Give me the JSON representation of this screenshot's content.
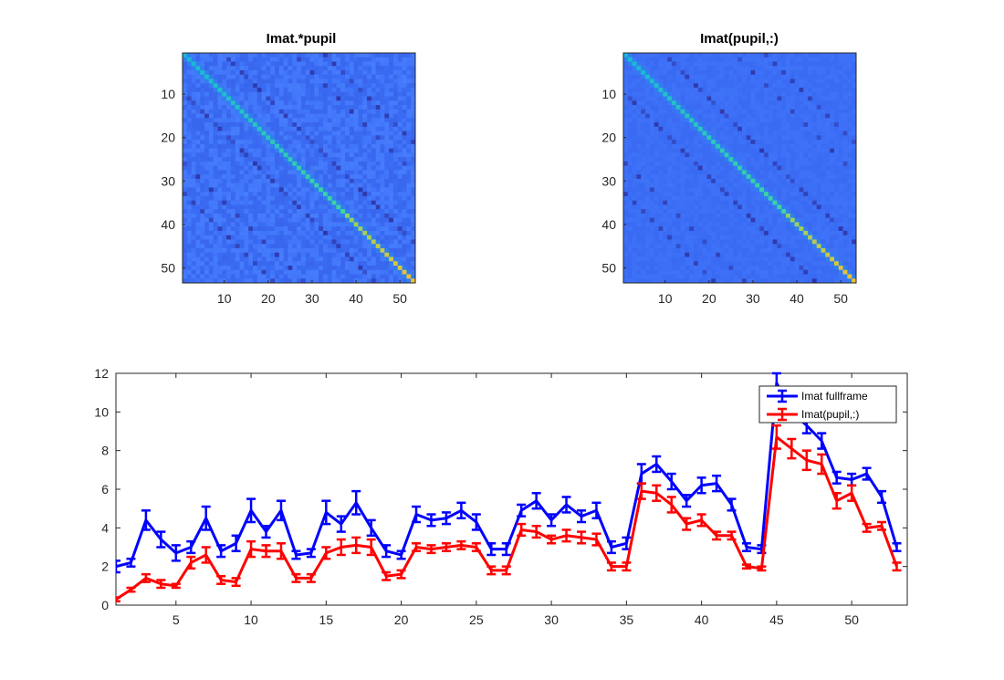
{
  "chart_data": [
    {
      "type": "heatmap",
      "title": "Imat.*pupil",
      "size": 53,
      "xticks": [
        10,
        20,
        30,
        40,
        50
      ],
      "yticks": [
        10,
        20,
        30,
        40,
        50
      ],
      "description_pattern": "bright diagonal on blue background with faint off-diagonal bands",
      "colors": {
        "background": "#3a6cf5",
        "low": "#2f37a8",
        "mid": "#17b8d8",
        "high": "#f5c032"
      }
    },
    {
      "type": "heatmap",
      "title": "Imat(pupil,:)",
      "size": 53,
      "xticks": [
        10,
        20,
        30,
        40,
        50
      ],
      "yticks": [
        10,
        20,
        30,
        40,
        50
      ],
      "colors": {
        "background": "#3a6cf5",
        "low": "#2f37a8",
        "mid": "#17b8d8",
        "high": "#f5c032"
      }
    },
    {
      "type": "line",
      "xlim": [
        1,
        53.7
      ],
      "ylim": [
        0,
        12
      ],
      "xticks": [
        5,
        10,
        15,
        20,
        25,
        30,
        35,
        40,
        45,
        50
      ],
      "yticks": [
        0,
        2,
        4,
        6,
        8,
        10,
        12
      ],
      "legend_position": "top-right",
      "x": [
        1,
        2,
        3,
        4,
        5,
        6,
        7,
        8,
        9,
        10,
        11,
        12,
        13,
        14,
        15,
        16,
        17,
        18,
        19,
        20,
        21,
        22,
        23,
        24,
        25,
        26,
        27,
        28,
        29,
        30,
        31,
        32,
        33,
        34,
        35,
        36,
        37,
        38,
        39,
        40,
        41,
        42,
        43,
        44,
        45,
        46,
        47,
        48,
        49,
        50,
        51,
        52,
        53
      ],
      "series": [
        {
          "name": "Imat fullframe",
          "color": "#0000ff",
          "values": [
            2.0,
            2.2,
            4.4,
            3.4,
            2.7,
            3.0,
            4.5,
            2.8,
            3.2,
            4.9,
            3.8,
            4.9,
            2.6,
            2.7,
            4.8,
            4.2,
            5.3,
            4.0,
            2.8,
            2.6,
            4.7,
            4.4,
            4.5,
            4.9,
            4.3,
            2.9,
            2.9,
            4.9,
            5.4,
            4.4,
            5.2,
            4.6,
            4.9,
            3.0,
            3.2,
            6.8,
            7.3,
            6.4,
            5.4,
            6.2,
            6.3,
            5.2,
            3.0,
            2.9,
            11.5,
            10.0,
            9.3,
            8.5,
            6.6,
            6.5,
            6.8,
            5.6,
            3.0
          ],
          "errors": [
            0.3,
            0.2,
            0.5,
            0.4,
            0.4,
            0.3,
            0.6,
            0.3,
            0.4,
            0.6,
            0.3,
            0.5,
            0.2,
            0.2,
            0.6,
            0.4,
            0.6,
            0.4,
            0.3,
            0.2,
            0.4,
            0.3,
            0.3,
            0.4,
            0.4,
            0.3,
            0.3,
            0.3,
            0.4,
            0.3,
            0.4,
            0.3,
            0.4,
            0.3,
            0.3,
            0.5,
            0.4,
            0.4,
            0.3,
            0.4,
            0.4,
            0.3,
            0.2,
            0.2,
            0.5,
            0.4,
            0.4,
            0.4,
            0.3,
            0.3,
            0.3,
            0.3,
            0.2
          ]
        },
        {
          "name": "Imat(pupil,:)",
          "color": "#ff0000",
          "values": [
            0.3,
            0.8,
            1.4,
            1.1,
            1.0,
            2.2,
            2.6,
            1.3,
            1.2,
            2.9,
            2.8,
            2.8,
            1.4,
            1.4,
            2.7,
            3.0,
            3.1,
            3.0,
            1.5,
            1.6,
            3.0,
            2.9,
            3.0,
            3.1,
            3.0,
            1.8,
            1.8,
            3.9,
            3.8,
            3.4,
            3.6,
            3.5,
            3.4,
            2.0,
            2.0,
            5.9,
            5.8,
            5.2,
            4.2,
            4.4,
            3.6,
            3.6,
            2.0,
            1.9,
            8.7,
            8.1,
            7.5,
            7.3,
            5.4,
            5.8,
            4.0,
            4.1,
            2.0
          ],
          "errors": [
            0.1,
            0.1,
            0.2,
            0.2,
            0.1,
            0.3,
            0.4,
            0.2,
            0.2,
            0.4,
            0.3,
            0.4,
            0.2,
            0.2,
            0.3,
            0.4,
            0.4,
            0.4,
            0.2,
            0.2,
            0.2,
            0.2,
            0.2,
            0.2,
            0.2,
            0.2,
            0.2,
            0.3,
            0.3,
            0.2,
            0.3,
            0.3,
            0.3,
            0.2,
            0.2,
            0.4,
            0.4,
            0.4,
            0.3,
            0.3,
            0.2,
            0.2,
            0.1,
            0.1,
            0.6,
            0.5,
            0.5,
            0.5,
            0.4,
            0.4,
            0.2,
            0.2,
            0.2
          ]
        }
      ]
    }
  ]
}
